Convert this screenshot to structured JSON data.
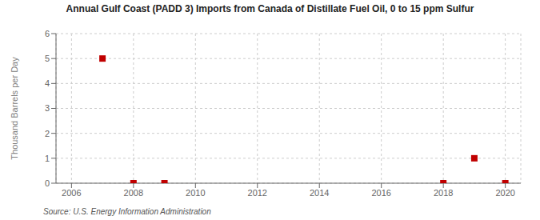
{
  "chart_data": {
    "type": "scatter",
    "title": "Annual Gulf Coast (PADD 3) Imports from Canada of Distillate Fuel Oil, 0 to 15 ppm Sulfur",
    "ylabel": "Thousand Barrels per Day",
    "annotations": [
      "Source: U.S. Energy Information Administration"
    ],
    "x": [
      2007,
      2008,
      2009,
      2018,
      2019,
      2020
    ],
    "values": [
      5.0,
      0.0,
      0.0,
      0.0,
      1.0,
      0.0
    ],
    "color": "#c00000",
    "marker": "square",
    "xlim": [
      2005.5,
      2020.5
    ],
    "xticks": [
      2006,
      2008,
      2010,
      2012,
      2014,
      2016,
      2018,
      2020
    ],
    "ylim": [
      0,
      6
    ],
    "yticks": [
      0,
      1,
      2,
      3,
      4,
      5,
      6
    ],
    "grid": true
  }
}
